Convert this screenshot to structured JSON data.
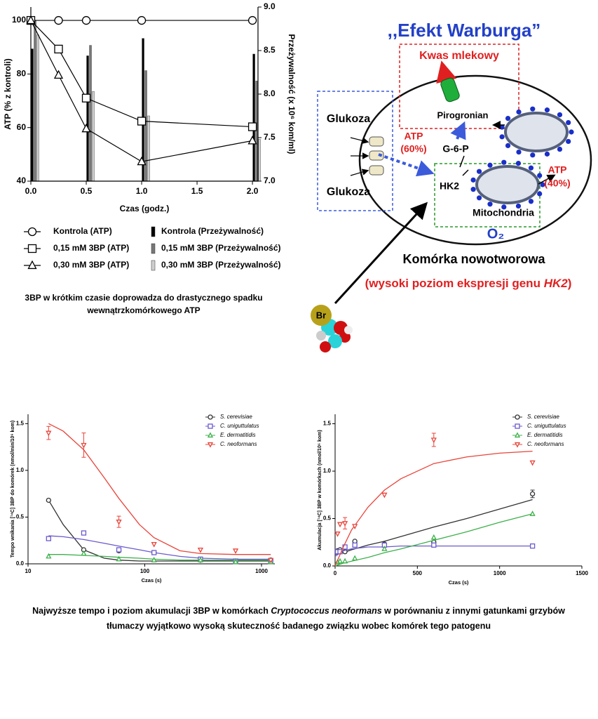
{
  "chart_data": [
    {
      "type": "line",
      "x_label": "Czas (godz.)",
      "y_label": "ATP (% z kontroli)",
      "y2_label": "Przeżywalność (x 10⁶ kom/ml)",
      "xlim": [
        0,
        2.05
      ],
      "xticks": [
        {
          "value": 0,
          "label": "0.0"
        },
        0.5,
        {
          "value": 1,
          "label": "1.0"
        },
        1.5,
        {
          "value": 2,
          "label": "2.0"
        }
      ],
      "ylim": [
        40,
        105
      ],
      "yticks": [
        40,
        60,
        80,
        100
      ],
      "y2lim": [
        7,
        9
      ],
      "y2ticks": [
        {
          "value": 7,
          "label": "7.0"
        },
        7.5,
        {
          "value": 8,
          "label": "8.0"
        },
        8.5,
        {
          "value": 9,
          "label": "9.0"
        }
      ],
      "series": [
        {
          "name": "Kontrola (ATP)",
          "color": "#000000",
          "marker": "circle",
          "x": [
            0,
            0.25,
            0.5,
            1,
            2
          ],
          "values": [
            100,
            100,
            100,
            100,
            100
          ]
        },
        {
          "name": "0,15 mM 3BP (ATP)",
          "color": "#000000",
          "marker": "square",
          "x": [
            0,
            0.25,
            0.5,
            1,
            2
          ],
          "values": [
            100,
            89.3,
            71,
            62.4,
            60.3
          ]
        },
        {
          "name": "0,30 mM 3BP (ATP)",
          "color": "#000000",
          "marker": "triangle",
          "x": [
            0,
            0.25,
            0.5,
            1,
            2
          ],
          "values": [
            100,
            79.6,
            59.6,
            47.3,
            55.1
          ]
        },
        {
          "name": "Kontrola (Przeżywalność)",
          "color": "#000000",
          "type": "bar",
          "axis": "y2",
          "x": [
            0,
            0.5,
            1,
            2
          ],
          "values": [
            8.52,
            8.44,
            8.64,
            8.46
          ]
        },
        {
          "name": "0,15 mM 3BP (Przeżywalność)",
          "color": "#777777",
          "type": "bar",
          "axis": "y2",
          "x": [
            0,
            0.5,
            1,
            2
          ],
          "values": [
            8.84,
            8.56,
            8.27,
            8.15
          ]
        },
        {
          "name": "0,30 mM 3BP (Przeżywalność)",
          "color": "#cfcfcf",
          "type": "bar",
          "axis": "y2",
          "x": [
            0,
            0.5,
            1,
            2
          ],
          "values": [
            8.68,
            8.03,
            7.75,
            7.48
          ]
        }
      ]
    },
    {
      "type": "scatter",
      "x_label": "Czas (s)",
      "y_label": "Tempo wnikania [¹⁴C] 3BP do komórek (nmol/min/10⁶ kom)",
      "log_x": true,
      "xlim": [
        10,
        1300
      ],
      "xticks": [
        10,
        100,
        1000
      ],
      "ylim": [
        0,
        1.6
      ],
      "yticks": [
        {
          "value": 0,
          "label": "0.0"
        },
        0.5,
        {
          "value": 1,
          "label": "1.0"
        },
        1.5
      ],
      "x": [
        15,
        30,
        60,
        120,
        300,
        600,
        1200
      ],
      "fit_x": [
        15,
        20,
        30,
        45,
        60,
        90,
        120,
        200,
        300,
        600,
        1200
      ],
      "series": [
        {
          "name": "S. cerevisiae",
          "color": "#333333",
          "marker": "circle",
          "values": [
            0.68,
            0.15,
            0.14,
            0.12,
            0.04,
            0.03,
            0.04
          ],
          "fit": [
            0.68,
            0.42,
            0.15,
            0.06,
            0.04,
            0.03,
            0.03,
            0.03,
            0.03,
            0.03,
            0.03
          ]
        },
        {
          "name": "C. uniguttulatus",
          "color": "#6a5acd",
          "marker": "square",
          "values": [
            0.27,
            0.33,
            0.15,
            0.12,
            0.05,
            0.03,
            0.03
          ],
          "fit": [
            0.3,
            0.29,
            0.26,
            0.22,
            0.19,
            0.15,
            0.12,
            0.08,
            0.06,
            0.05,
            0.05
          ]
        },
        {
          "name": "E. dermatitidis",
          "color": "#3cb04a",
          "marker": "triangle",
          "values": [
            0.08,
            0.11,
            0.05,
            0.04,
            0.04,
            0.02,
            0.02
          ],
          "fit": [
            0.1,
            0.1,
            0.09,
            0.08,
            0.07,
            0.06,
            0.05,
            0.04,
            0.04,
            0.04,
            0.04
          ]
        },
        {
          "name": "C. neoformans",
          "color": "#e8443a",
          "marker": "triangle-down",
          "values": [
            1.4,
            1.27,
            0.45,
            0.21,
            0.15,
            0.14,
            0.04
          ],
          "errors": [
            0.07,
            0.13,
            0.06,
            null,
            null,
            null,
            null
          ],
          "fit": [
            1.5,
            1.42,
            1.22,
            0.92,
            0.7,
            0.42,
            0.28,
            0.14,
            0.11,
            0.1,
            0.1
          ]
        }
      ]
    },
    {
      "type": "scatter",
      "x_label": "Czas (s)",
      "y_label": "Akumulacja [¹⁴C] 3BP w komórkach (nmol/10⁶ kom)",
      "xlim": [
        0,
        1500
      ],
      "xticks": [
        0,
        500,
        1000,
        1500
      ],
      "ylim": [
        0,
        1.6
      ],
      "yticks": [
        {
          "value": 0,
          "label": "0.0"
        },
        0.5,
        {
          "value": 1,
          "label": "1.0"
        },
        1.5
      ],
      "x": [
        15,
        30,
        60,
        120,
        300,
        600,
        1200
      ],
      "fit_x": [
        0,
        50,
        100,
        200,
        300,
        400,
        600,
        800,
        1000,
        1200
      ],
      "series": [
        {
          "name": "S. cerevisiae",
          "color": "#333333",
          "marker": "circle",
          "values": [
            0.16,
            0.17,
            0.15,
            0.26,
            0.23,
            0.25,
            0.76
          ],
          "errors": [
            null,
            null,
            null,
            null,
            null,
            null,
            0.04
          ],
          "fit": [
            0.12,
            0.14,
            0.17,
            0.22,
            0.26,
            0.31,
            0.41,
            0.5,
            0.6,
            0.7
          ]
        },
        {
          "name": "C. uniguttulatus",
          "color": "#6a5acd",
          "marker": "square",
          "values": [
            0.15,
            0.15,
            0.2,
            0.22,
            0.22,
            0.22,
            0.21
          ],
          "fit": [
            0.1,
            0.16,
            0.18,
            0.2,
            0.2,
            0.21,
            0.21,
            0.21,
            0.21,
            0.21
          ]
        },
        {
          "name": "E. dermatitidis",
          "color": "#3cb04a",
          "marker": "triangle",
          "values": [
            0.04,
            0.05,
            0.05,
            0.08,
            0.18,
            0.3,
            0.55
          ],
          "fit": [
            0,
            0.03,
            0.05,
            0.09,
            0.14,
            0.18,
            0.27,
            0.36,
            0.46,
            0.55
          ]
        },
        {
          "name": "C. neoformans",
          "color": "#e8443a",
          "marker": "triangle-down",
          "values": [
            0.34,
            0.44,
            0.45,
            0.42,
            0.75,
            1.33,
            1.09
          ],
          "errors": [
            null,
            null,
            0.06,
            null,
            null,
            0.07,
            null
          ],
          "fit": [
            0,
            0.2,
            0.38,
            0.62,
            0.8,
            0.92,
            1.08,
            1.15,
            1.19,
            1.21
          ]
        }
      ]
    }
  ],
  "diagram": {
    "title": ",,Efekt Warburga”",
    "lactate": "Kwas mlekowy",
    "pyruvate": "Pirogronian",
    "glucose_top": "Glukoza",
    "glucose_bottom": "Glukoza",
    "atp60": [
      "ATP",
      "(60%)"
    ],
    "g6p": "G-6-P",
    "hk2": "HK2",
    "mitochondria": "Mitochondria",
    "atp40": [
      "ATP",
      "(40%)"
    ],
    "o2": "O₂",
    "cell": "Komórka nowotworowa",
    "expression": [
      "(wysoki poziom ekspresji genu ",
      "HK2",
      ")"
    ],
    "br": "Br"
  },
  "captions": {
    "atp": [
      "3BP w krótkim czasie doprowadza do drastycznego spadku",
      "wewnątrzkomórkowego ATP"
    ],
    "bottom": {
      "line1": [
        "Najwyższe tempo i poziom akumulacji 3BP w komórkach ",
        "Cryptococcus neoformans",
        " w porównaniu z innymi gatunkami grzybów"
      ],
      "line2": "tłumaczy wyjątkowo wysoką skuteczność badanego związku wobec komórek tego patogenu"
    }
  }
}
